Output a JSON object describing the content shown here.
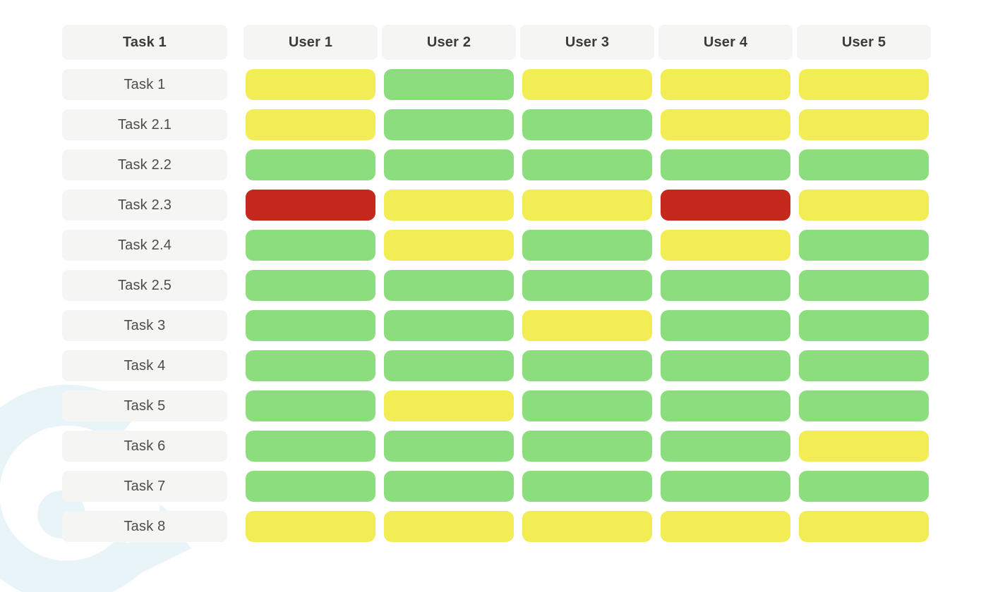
{
  "palette": {
    "green": "#8BDD7D",
    "yellow": "#F3ED55",
    "red": "#C5281C",
    "pill_bg": "#F5F5F3",
    "header_text": "#3B3B3A",
    "label_text": "#4C4C4B",
    "watermark": "#E9F4F8",
    "page_bg": "#FFFFFF"
  },
  "chart_data": {
    "type": "heatmap",
    "title": "",
    "corner_label": "Task 1",
    "columns": [
      "User 1",
      "User 2",
      "User 3",
      "User 4",
      "User 5"
    ],
    "rows": [
      "Task 1",
      "Task 2.1",
      "Task 2.2",
      "Task 2.3",
      "Task 2.4",
      "Task 2.5",
      "Task 3",
      "Task 4",
      "Task 5",
      "Task 6",
      "Task 7",
      "Task 8"
    ],
    "values": [
      [
        "yellow",
        "green",
        "yellow",
        "yellow",
        "yellow"
      ],
      [
        "yellow",
        "green",
        "green",
        "yellow",
        "yellow"
      ],
      [
        "green",
        "green",
        "green",
        "green",
        "green"
      ],
      [
        "red",
        "yellow",
        "yellow",
        "red",
        "yellow"
      ],
      [
        "green",
        "yellow",
        "green",
        "yellow",
        "green"
      ],
      [
        "green",
        "green",
        "green",
        "green",
        "green"
      ],
      [
        "green",
        "green",
        "yellow",
        "green",
        "green"
      ],
      [
        "green",
        "green",
        "green",
        "green",
        "green"
      ],
      [
        "green",
        "yellow",
        "green",
        "green",
        "green"
      ],
      [
        "green",
        "green",
        "green",
        "green",
        "yellow"
      ],
      [
        "green",
        "green",
        "green",
        "green",
        "green"
      ],
      [
        "yellow",
        "yellow",
        "yellow",
        "yellow",
        "yellow"
      ]
    ],
    "cell_colors": {
      "green": "#8BDD7D",
      "yellow": "#F3ED55",
      "red": "#C5281C"
    },
    "grid": "off",
    "legend_position": "none"
  },
  "watermark": {
    "icon": "g-swirl-logo-icon",
    "color": "#E9F4F8"
  }
}
